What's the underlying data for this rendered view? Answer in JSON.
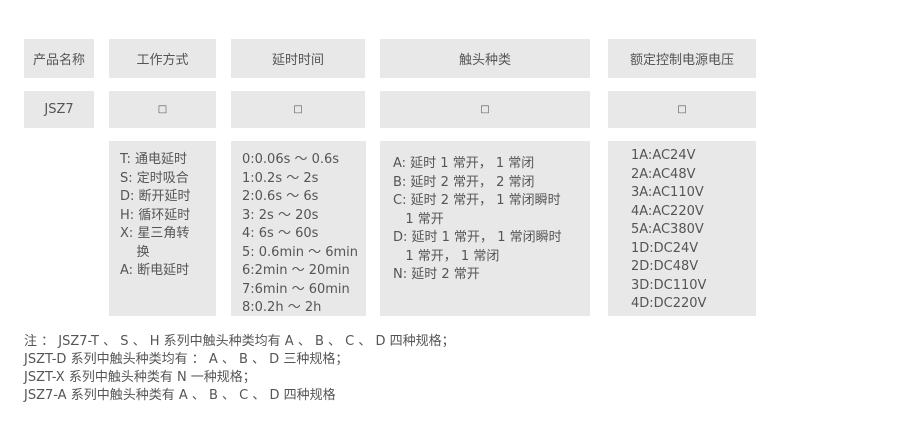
{
  "headers": [
    "产品名称",
    "工作方式",
    "延时时间",
    "触头种类",
    "额定控制电源电压"
  ],
  "row2": [
    "JSZ7",
    "□",
    "□",
    "□",
    "□"
  ],
  "work_modes": [
    "T: 通电延时",
    "S: 定时吸合",
    "D: 断开延时",
    "H: 循环延时",
    "X: 星三角转\n    换",
    "A: 断电延时"
  ],
  "delay_times": [
    "0:0.06s ～ 0.6s",
    "1:0.2s ～ 2s",
    "2:0.6s ～ 6s",
    "3: 2s ～ 20s",
    "4: 6s ～ 60s",
    "5: 0.6min ～ 6min",
    "6:2min ～ 20min",
    "7:6min ～ 60min",
    "8:0.2h ～ 2h"
  ],
  "contact_types": [
    "A: 延时 1 常开， 1 常闭",
    "B: 延时 2 常开， 2 常闭",
    "C: 延时 2 常开， 1 常闭瞬时\n   1 常开",
    "D: 延时 1 常开， 1 常闭瞬时\n   1 常开， 1 常闭",
    "N: 延时 2 常开"
  ],
  "voltages": [
    "1A:AC24V",
    "2A:AC48V",
    "3A:AC110V",
    "4A:AC220V",
    "5A:AC380V",
    "1D:DC24V",
    "2D:DC48V",
    "3D:DC110V",
    "4D:DC220V"
  ],
  "notes": [
    "注 ： JSZ7-T 、 S 、 H 系列中触头种类均有 A 、 B 、 C 、 D 四种规格；",
    "JSZT-D 系列中触头种类均有 ： A 、 B 、 D 三种规格；",
    "JSZT-X 系列中触头种类有 N 一种规格；",
    "JSZ7-A 系列中触头种类有 A 、 B 、 C 、 D 四种规格"
  ]
}
